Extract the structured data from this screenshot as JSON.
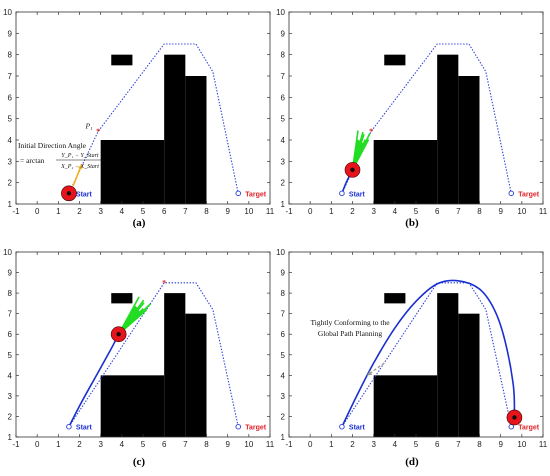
{
  "chart_data": [
    {
      "type": "scatter",
      "panel_label": "(a)",
      "title": "",
      "xlabel": "",
      "ylabel": "",
      "xlim": [
        -1,
        11
      ],
      "ylim": [
        1,
        10
      ],
      "xticks": [
        "-1",
        "0",
        "1",
        "2",
        "3",
        "4",
        "5",
        "6",
        "7",
        "8",
        "9",
        "10",
        "11"
      ],
      "yticks": [
        "1",
        "2",
        "3",
        "4",
        "5",
        "6",
        "7",
        "8",
        "9",
        "10"
      ],
      "grid": false,
      "obstacles": [
        {
          "x0": 3.5,
          "y0": 7.5,
          "x1": 4.5,
          "y1": 8.0
        },
        {
          "x0": 3.0,
          "y0": 1.0,
          "x1": 6.0,
          "y1": 4.0
        },
        {
          "x0": 6.0,
          "y0": 1.0,
          "x1": 7.0,
          "y1": 8.0
        },
        {
          "x0": 7.0,
          "y0": 1.0,
          "x1": 8.0,
          "y1": 7.0
        }
      ],
      "global_path": {
        "x": [
          1.5,
          2.88,
          6.0,
          7.5,
          8.3,
          9.5
        ],
        "y": [
          1.5,
          4.4,
          8.5,
          8.5,
          7.2,
          1.5
        ]
      },
      "start": {
        "x": 1.5,
        "y": 1.5,
        "label": "Start"
      },
      "target": {
        "x": 9.5,
        "y": 1.5,
        "label": "Target"
      },
      "waypoint": {
        "x": 2.88,
        "y": 4.4,
        "label": "P₁"
      },
      "robot": {
        "x": 1.5,
        "y": 1.5
      },
      "heading_arrow": {
        "x0": 1.7,
        "y0": 1.85,
        "x1": 2.1,
        "y1": 2.85
      },
      "annotation": {
        "line1": "Initial Direction Angle",
        "prefix": "= arctan",
        "numerator": "Y_P₁ − Y_Start",
        "denominator": "X_P₁ − X_Start"
      }
    },
    {
      "type": "line",
      "panel_label": "(b)",
      "title": "",
      "xlabel": "",
      "ylabel": "",
      "xlim": [
        -1,
        11
      ],
      "ylim": [
        1,
        10
      ],
      "xticks": [
        "-1",
        "0",
        "1",
        "2",
        "3",
        "4",
        "5",
        "6",
        "7",
        "8",
        "9",
        "10",
        "11"
      ],
      "yticks": [
        "1",
        "2",
        "3",
        "4",
        "5",
        "6",
        "7",
        "8",
        "9",
        "10"
      ],
      "grid": false,
      "obstacles": [
        {
          "x0": 3.5,
          "y0": 7.5,
          "x1": 4.5,
          "y1": 8.0
        },
        {
          "x0": 3.0,
          "y0": 1.0,
          "x1": 6.0,
          "y1": 4.0
        },
        {
          "x0": 6.0,
          "y0": 1.0,
          "x1": 7.0,
          "y1": 8.0
        },
        {
          "x0": 7.0,
          "y0": 1.0,
          "x1": 8.0,
          "y1": 7.0
        }
      ],
      "global_path": {
        "x": [
          1.5,
          2.88,
          6.0,
          7.5,
          8.3,
          9.5
        ],
        "y": [
          1.5,
          4.4,
          8.5,
          8.5,
          7.2,
          1.5
        ]
      },
      "traveled_path": {
        "x": [
          1.5,
          1.7,
          2.0
        ],
        "y": [
          1.5,
          2.0,
          2.6
        ]
      },
      "start": {
        "x": 1.5,
        "y": 1.5,
        "label": "Start"
      },
      "target": {
        "x": 9.5,
        "y": 1.5,
        "label": "Target"
      },
      "waypoint": {
        "x": 2.88,
        "y": 4.4,
        "label": ""
      },
      "robot": {
        "x": 2.0,
        "y": 2.6
      },
      "fan": {
        "angle_deg": 72,
        "spread_deg": 20,
        "len": 1.9,
        "rays": 9
      }
    },
    {
      "type": "line",
      "panel_label": "(c)",
      "title": "",
      "xlabel": "",
      "ylabel": "",
      "xlim": [
        -1,
        11
      ],
      "ylim": [
        1,
        10
      ],
      "xticks": [
        "-1",
        "0",
        "1",
        "2",
        "3",
        "4",
        "5",
        "6",
        "7",
        "8",
        "9",
        "10",
        "11"
      ],
      "yticks": [
        "1",
        "2",
        "3",
        "4",
        "5",
        "6",
        "7",
        "8",
        "9",
        "10"
      ],
      "grid": false,
      "obstacles": [
        {
          "x0": 3.5,
          "y0": 7.5,
          "x1": 4.5,
          "y1": 8.0
        },
        {
          "x0": 3.0,
          "y0": 1.0,
          "x1": 6.0,
          "y1": 4.0
        },
        {
          "x0": 6.0,
          "y0": 1.0,
          "x1": 7.0,
          "y1": 8.0
        },
        {
          "x0": 7.0,
          "y0": 1.0,
          "x1": 8.0,
          "y1": 7.0
        }
      ],
      "global_path": {
        "x": [
          1.5,
          6.0,
          7.5,
          8.3,
          9.5
        ],
        "y": [
          1.5,
          8.5,
          8.5,
          7.2,
          1.5
        ]
      },
      "traveled_path": {
        "x": [
          1.5,
          2.1,
          2.8,
          3.5,
          3.85
        ],
        "y": [
          1.5,
          2.7,
          4.0,
          5.3,
          6.0
        ]
      },
      "start": {
        "x": 1.5,
        "y": 1.5,
        "label": "Start"
      },
      "target": {
        "x": 9.5,
        "y": 1.5,
        "label": "Target"
      },
      "waypoint": {
        "x": 6.0,
        "y": 8.5,
        "label": ""
      },
      "robot": {
        "x": 3.85,
        "y": 6.0
      },
      "fan": {
        "angle_deg": 52,
        "spread_deg": 20,
        "len": 2.1,
        "rays": 9
      }
    },
    {
      "type": "line",
      "panel_label": "(d)",
      "title": "",
      "xlabel": "",
      "ylabel": "",
      "xlim": [
        -1,
        11
      ],
      "ylim": [
        1,
        10
      ],
      "xticks": [
        "-1",
        "0",
        "1",
        "2",
        "3",
        "4",
        "5",
        "6",
        "7",
        "8",
        "9",
        "10",
        "11"
      ],
      "yticks": [
        "1",
        "2",
        "3",
        "4",
        "5",
        "6",
        "7",
        "8",
        "9",
        "10"
      ],
      "grid": false,
      "obstacles": [
        {
          "x0": 3.5,
          "y0": 7.5,
          "x1": 4.5,
          "y1": 8.0
        },
        {
          "x0": 3.0,
          "y0": 1.0,
          "x1": 6.0,
          "y1": 4.0
        },
        {
          "x0": 6.0,
          "y0": 1.0,
          "x1": 7.0,
          "y1": 8.0
        },
        {
          "x0": 7.0,
          "y0": 1.0,
          "x1": 8.0,
          "y1": 7.0
        }
      ],
      "global_path": {
        "x": [
          1.5,
          6.0,
          7.5,
          8.3,
          9.5
        ],
        "y": [
          1.5,
          8.5,
          8.5,
          7.2,
          1.5
        ]
      },
      "traveled_path": {
        "x": [
          1.5,
          2.2,
          3.0,
          4.0,
          5.0,
          6.0,
          7.0,
          8.0,
          8.7,
          9.2,
          9.6,
          9.65
        ],
        "y": [
          1.5,
          3.0,
          4.6,
          6.3,
          7.6,
          8.45,
          8.6,
          8.2,
          7.2,
          5.7,
          3.5,
          2.0
        ]
      },
      "start": {
        "x": 1.5,
        "y": 1.5,
        "label": "Start"
      },
      "target": {
        "x": 9.5,
        "y": 1.5,
        "label": "Target"
      },
      "robot": {
        "x": 9.65,
        "y": 1.95
      },
      "annotation": {
        "line1": "Tightly Conforming to the",
        "line2": "Global Path Planning",
        "arrow_from": {
          "x": 3.5,
          "y": 4.6
        },
        "arrow_to": {
          "x": 2.7,
          "y": 4.0
        }
      }
    }
  ],
  "colors": {
    "path": "#2b3fd8",
    "traveled": "#1a2fd0",
    "obstacle": "#000000",
    "robot": "#e8141b",
    "target": "#e0222a",
    "fan": "#22dd22",
    "heading": "#f2b21a",
    "waypoint": "#e0222a",
    "annotation_arrow": "#9a9a9a"
  }
}
